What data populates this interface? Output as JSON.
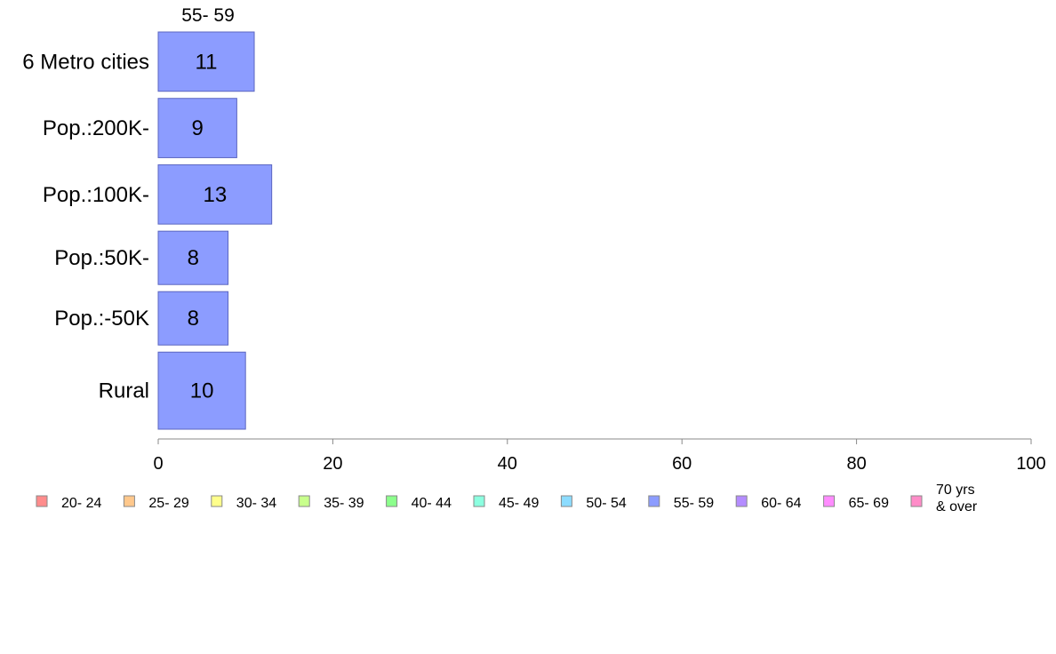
{
  "chart_data": {
    "type": "bar",
    "orientation": "horizontal",
    "categories": [
      "6 Metro cities",
      "Pop.:200K-",
      "Pop.:100K-",
      "Pop.:50K-",
      "Pop.:-50K",
      "Rural"
    ],
    "series": [
      {
        "name": "55- 59",
        "values": [
          11,
          9,
          13,
          8,
          8,
          10
        ],
        "color": "#8c9cff"
      }
    ],
    "column_title": "55- 59",
    "xlim": [
      0,
      100
    ],
    "xticks": [
      "0",
      "20",
      "40",
      "60",
      "80",
      "100"
    ],
    "category_weights": [
      1.0,
      1.0,
      1.0,
      0.9,
      0.9,
      1.3
    ],
    "grid": false,
    "legend": {
      "placement": "bottom",
      "items": [
        {
          "label": "20- 24",
          "color": "#ff8c8c"
        },
        {
          "label": "25- 29",
          "color": "#ffc88c"
        },
        {
          "label": "30- 34",
          "color": "#ffff8c"
        },
        {
          "label": "35- 39",
          "color": "#c8ff8c"
        },
        {
          "label": "40- 44",
          "color": "#8cff8c"
        },
        {
          "label": "45- 49",
          "color": "#8cffe0"
        },
        {
          "label": "50- 54",
          "color": "#8cdcff"
        },
        {
          "label": "55- 59",
          "color": "#8c9cff"
        },
        {
          "label": "60- 64",
          "color": "#b48cff"
        },
        {
          "label": "65- 69",
          "color": "#ff8cff"
        },
        {
          "label": "70 yrs\n& over",
          "color": "#ff8cc8"
        }
      ]
    }
  }
}
